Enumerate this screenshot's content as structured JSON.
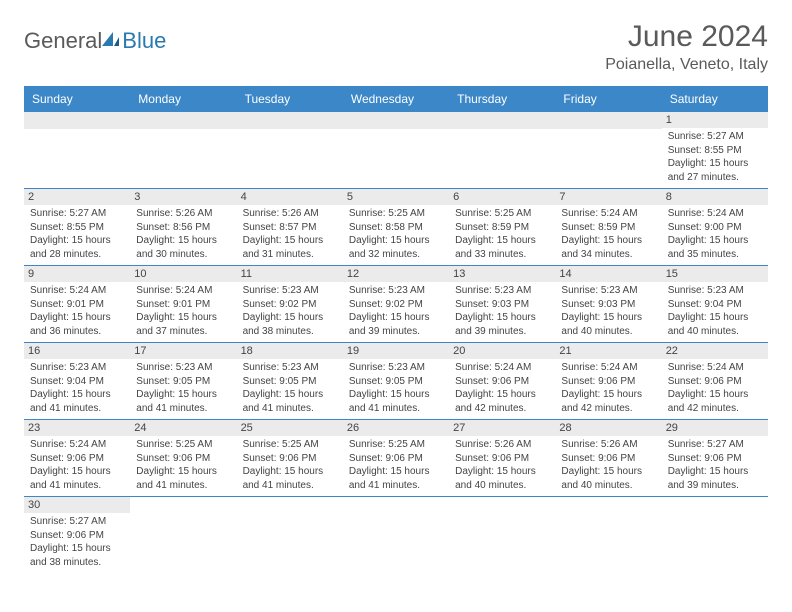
{
  "logo": {
    "text1": "General",
    "text2": "Blue"
  },
  "title": "June 2024",
  "subtitle": "Poianella, Veneto, Italy",
  "colors": {
    "header_bg": "#3b87c8",
    "header_fg": "#ffffff",
    "daynum_bg": "#ebebeb",
    "text": "#444444",
    "title_color": "#5a5a5a",
    "logo_blue": "#2a7ab0",
    "row_border": "#3b87c8"
  },
  "dayHeaders": [
    "Sunday",
    "Monday",
    "Tuesday",
    "Wednesday",
    "Thursday",
    "Friday",
    "Saturday"
  ],
  "weeks": [
    [
      null,
      null,
      null,
      null,
      null,
      null,
      {
        "n": "1",
        "sr": "5:27 AM",
        "ss": "8:55 PM",
        "dl": "15 hours and 27 minutes."
      }
    ],
    [
      {
        "n": "2",
        "sr": "5:27 AM",
        "ss": "8:55 PM",
        "dl": "15 hours and 28 minutes."
      },
      {
        "n": "3",
        "sr": "5:26 AM",
        "ss": "8:56 PM",
        "dl": "15 hours and 30 minutes."
      },
      {
        "n": "4",
        "sr": "5:26 AM",
        "ss": "8:57 PM",
        "dl": "15 hours and 31 minutes."
      },
      {
        "n": "5",
        "sr": "5:25 AM",
        "ss": "8:58 PM",
        "dl": "15 hours and 32 minutes."
      },
      {
        "n": "6",
        "sr": "5:25 AM",
        "ss": "8:59 PM",
        "dl": "15 hours and 33 minutes."
      },
      {
        "n": "7",
        "sr": "5:24 AM",
        "ss": "8:59 PM",
        "dl": "15 hours and 34 minutes."
      },
      {
        "n": "8",
        "sr": "5:24 AM",
        "ss": "9:00 PM",
        "dl": "15 hours and 35 minutes."
      }
    ],
    [
      {
        "n": "9",
        "sr": "5:24 AM",
        "ss": "9:01 PM",
        "dl": "15 hours and 36 minutes."
      },
      {
        "n": "10",
        "sr": "5:24 AM",
        "ss": "9:01 PM",
        "dl": "15 hours and 37 minutes."
      },
      {
        "n": "11",
        "sr": "5:23 AM",
        "ss": "9:02 PM",
        "dl": "15 hours and 38 minutes."
      },
      {
        "n": "12",
        "sr": "5:23 AM",
        "ss": "9:02 PM",
        "dl": "15 hours and 39 minutes."
      },
      {
        "n": "13",
        "sr": "5:23 AM",
        "ss": "9:03 PM",
        "dl": "15 hours and 39 minutes."
      },
      {
        "n": "14",
        "sr": "5:23 AM",
        "ss": "9:03 PM",
        "dl": "15 hours and 40 minutes."
      },
      {
        "n": "15",
        "sr": "5:23 AM",
        "ss": "9:04 PM",
        "dl": "15 hours and 40 minutes."
      }
    ],
    [
      {
        "n": "16",
        "sr": "5:23 AM",
        "ss": "9:04 PM",
        "dl": "15 hours and 41 minutes."
      },
      {
        "n": "17",
        "sr": "5:23 AM",
        "ss": "9:05 PM",
        "dl": "15 hours and 41 minutes."
      },
      {
        "n": "18",
        "sr": "5:23 AM",
        "ss": "9:05 PM",
        "dl": "15 hours and 41 minutes."
      },
      {
        "n": "19",
        "sr": "5:23 AM",
        "ss": "9:05 PM",
        "dl": "15 hours and 41 minutes."
      },
      {
        "n": "20",
        "sr": "5:24 AM",
        "ss": "9:06 PM",
        "dl": "15 hours and 42 minutes."
      },
      {
        "n": "21",
        "sr": "5:24 AM",
        "ss": "9:06 PM",
        "dl": "15 hours and 42 minutes."
      },
      {
        "n": "22",
        "sr": "5:24 AM",
        "ss": "9:06 PM",
        "dl": "15 hours and 42 minutes."
      }
    ],
    [
      {
        "n": "23",
        "sr": "5:24 AM",
        "ss": "9:06 PM",
        "dl": "15 hours and 41 minutes."
      },
      {
        "n": "24",
        "sr": "5:25 AM",
        "ss": "9:06 PM",
        "dl": "15 hours and 41 minutes."
      },
      {
        "n": "25",
        "sr": "5:25 AM",
        "ss": "9:06 PM",
        "dl": "15 hours and 41 minutes."
      },
      {
        "n": "26",
        "sr": "5:25 AM",
        "ss": "9:06 PM",
        "dl": "15 hours and 41 minutes."
      },
      {
        "n": "27",
        "sr": "5:26 AM",
        "ss": "9:06 PM",
        "dl": "15 hours and 40 minutes."
      },
      {
        "n": "28",
        "sr": "5:26 AM",
        "ss": "9:06 PM",
        "dl": "15 hours and 40 minutes."
      },
      {
        "n": "29",
        "sr": "5:27 AM",
        "ss": "9:06 PM",
        "dl": "15 hours and 39 minutes."
      }
    ],
    [
      {
        "n": "30",
        "sr": "5:27 AM",
        "ss": "9:06 PM",
        "dl": "15 hours and 38 minutes."
      },
      null,
      null,
      null,
      null,
      null,
      null
    ]
  ],
  "labels": {
    "sunrise": "Sunrise: ",
    "sunset": "Sunset: ",
    "daylight": "Daylight: "
  }
}
